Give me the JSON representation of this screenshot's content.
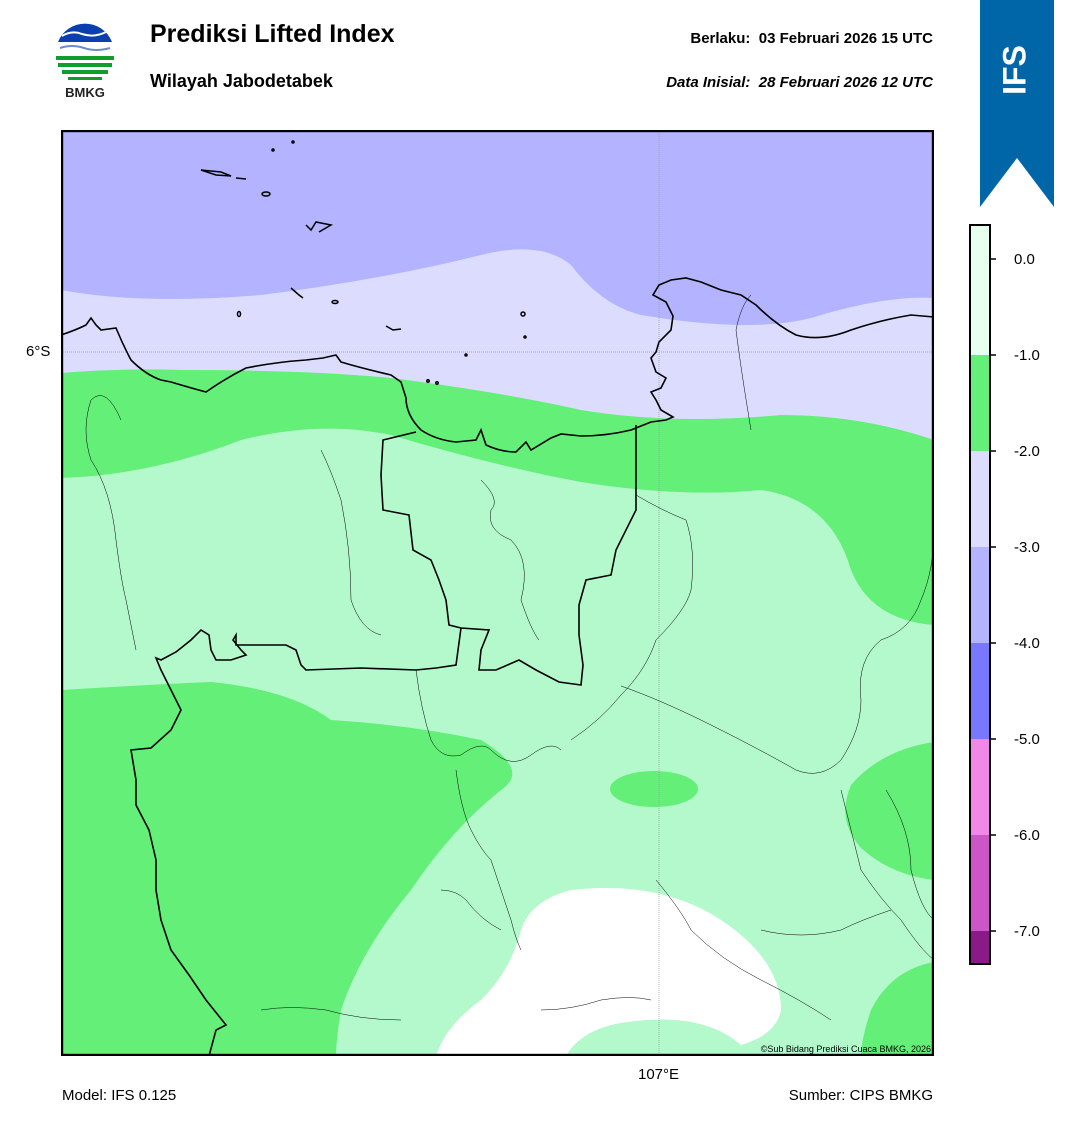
{
  "header": {
    "title": "Prediksi Lifted Index",
    "subtitle": "Wilayah Jabodetabek",
    "valid_label": "Berlaku:",
    "valid_value": "03 Februari 2026 15 UTC",
    "init_label": "Data Inisial:",
    "init_value": "28 Februari 2026 12 UTC"
  },
  "logo": {
    "text": "BMKG",
    "icon": "bmkg-logo"
  },
  "ribbon": {
    "text": "IFS",
    "color": "#0066a8"
  },
  "map": {
    "lat_label": "6°S",
    "lon_label": "107°E",
    "copyright": "©Sub Bidang Prediksi Cuaca BMKG, 2026",
    "colors": {
      "band_0_to_m1": "#b3f9cb",
      "band_m1_to_m2": "#63ef78",
      "band_m2_to_m3": "#dcdcff",
      "band_m3_to_m4": "#b3b3ff",
      "above_0": "#ffffff"
    }
  },
  "colorbar": {
    "ticks": [
      "0.0",
      "-1.0",
      "-2.0",
      "-3.0",
      "-4.0",
      "-5.0",
      "-6.0",
      "-7.0"
    ],
    "colors": [
      "#e6ffee",
      "#63ef78",
      "#dcdcff",
      "#b3b3ff",
      "#7777ff",
      "#f088e8",
      "#cc55c8",
      "#8a1a88"
    ]
  },
  "footer": {
    "model": "Model: IFS 0.125",
    "source": "Sumber: CIPS BMKG"
  }
}
